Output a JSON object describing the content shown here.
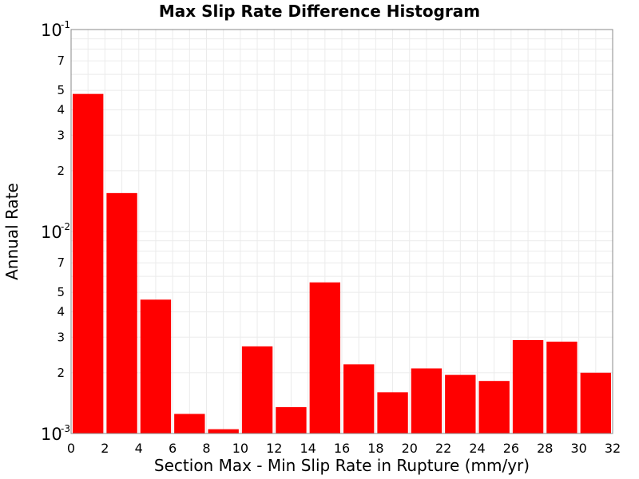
{
  "chart_data": {
    "type": "bar",
    "title": "Max Slip Rate Difference Histogram",
    "xlabel": "Section Max - Min Slip Rate in Rupture (mm/yr)",
    "ylabel": "Annual Rate",
    "xlim": [
      0,
      32
    ],
    "ylim": [
      0.001,
      0.1
    ],
    "yscale": "log",
    "grid": true,
    "bar_color": "#ff0000",
    "bin_width": 2,
    "x_ticks": [
      "0",
      "2",
      "4",
      "6",
      "8",
      "10",
      "12",
      "14",
      "16",
      "18",
      "20",
      "22",
      "24",
      "26",
      "28",
      "30",
      "32"
    ],
    "y_major_ticks": [
      {
        "base": "10",
        "exp": "-1",
        "value": 0.1
      },
      {
        "base": "10",
        "exp": "-2",
        "value": 0.01
      },
      {
        "base": "10",
        "exp": "-3",
        "value": 0.001
      }
    ],
    "y_minor_ticks": [
      {
        "label": "7",
        "value": 0.07
      },
      {
        "label": "5",
        "value": 0.05
      },
      {
        "label": "4",
        "value": 0.04
      },
      {
        "label": "3",
        "value": 0.03
      },
      {
        "label": "2",
        "value": 0.02
      },
      {
        "label": "7",
        "value": 0.007
      },
      {
        "label": "5",
        "value": 0.005
      },
      {
        "label": "4",
        "value": 0.004
      },
      {
        "label": "3",
        "value": 0.003
      },
      {
        "label": "2",
        "value": 0.002
      }
    ],
    "bins": [
      {
        "x_start": 0,
        "x_end": 2,
        "value": 0.048
      },
      {
        "x_start": 2,
        "x_end": 4,
        "value": 0.0155
      },
      {
        "x_start": 4,
        "x_end": 6,
        "value": 0.0046
      },
      {
        "x_start": 6,
        "x_end": 8,
        "value": 0.00125
      },
      {
        "x_start": 8,
        "x_end": 10,
        "value": 0.00105
      },
      {
        "x_start": 10,
        "x_end": 12,
        "value": 0.0027
      },
      {
        "x_start": 12,
        "x_end": 14,
        "value": 0.00135
      },
      {
        "x_start": 14,
        "x_end": 16,
        "value": 0.0056
      },
      {
        "x_start": 16,
        "x_end": 18,
        "value": 0.0022
      },
      {
        "x_start": 18,
        "x_end": 20,
        "value": 0.0016
      },
      {
        "x_start": 20,
        "x_end": 22,
        "value": 0.0021
      },
      {
        "x_start": 22,
        "x_end": 24,
        "value": 0.00195
      },
      {
        "x_start": 24,
        "x_end": 26,
        "value": 0.00182
      },
      {
        "x_start": 26,
        "x_end": 28,
        "value": 0.0029
      },
      {
        "x_start": 28,
        "x_end": 30,
        "value": 0.00285
      },
      {
        "x_start": 30,
        "x_end": 32,
        "value": 0.002
      }
    ]
  }
}
